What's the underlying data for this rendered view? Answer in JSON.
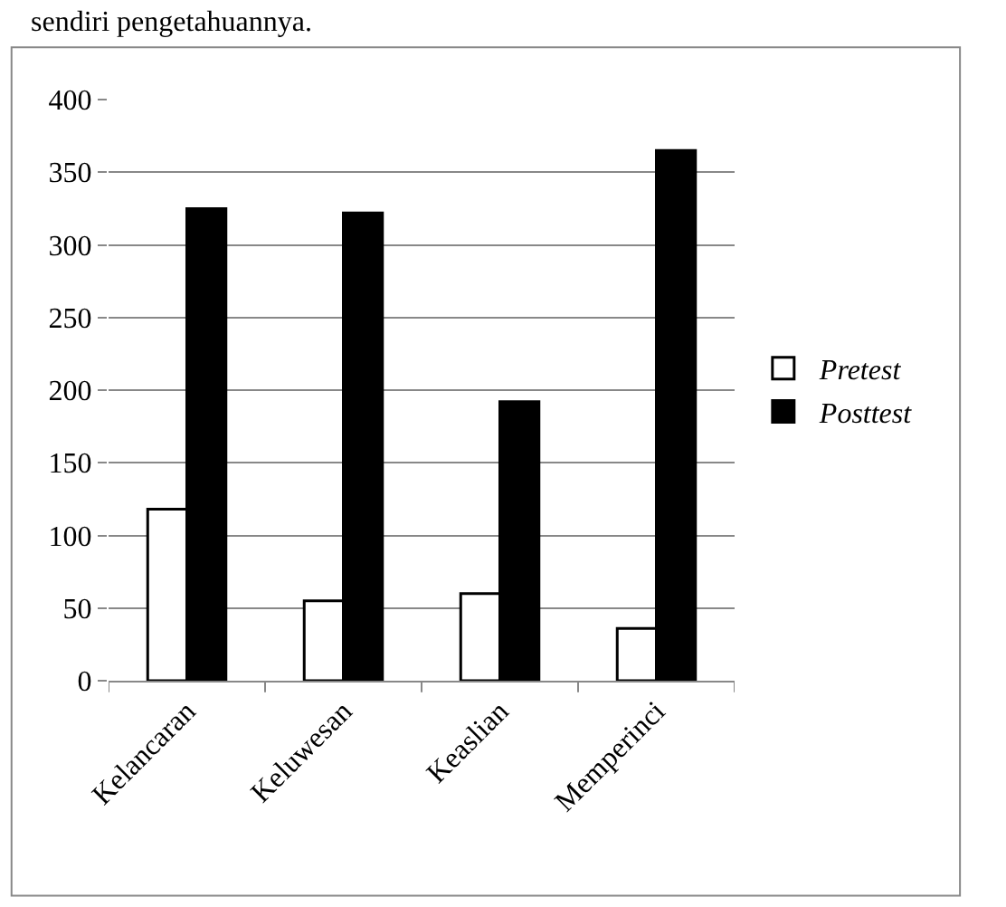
{
  "chart_data": {
    "type": "bar",
    "categories": [
      "Kelancaran",
      "Keluwesan",
      "Keaslian",
      "Memperinci"
    ],
    "series": [
      {
        "name": "Pretest",
        "color": "#ffffff",
        "values": [
          118,
          55,
          60,
          36
        ]
      },
      {
        "name": "Posttest",
        "color": "#000000",
        "values": [
          325,
          322,
          192,
          365
        ]
      }
    ],
    "ylim": [
      0,
      400
    ],
    "yticks": [
      0,
      50,
      100,
      150,
      200,
      250,
      300,
      350,
      400
    ],
    "grid": "y",
    "legend": "right",
    "annotations": [
      "sendiri pengetahuannya."
    ]
  }
}
